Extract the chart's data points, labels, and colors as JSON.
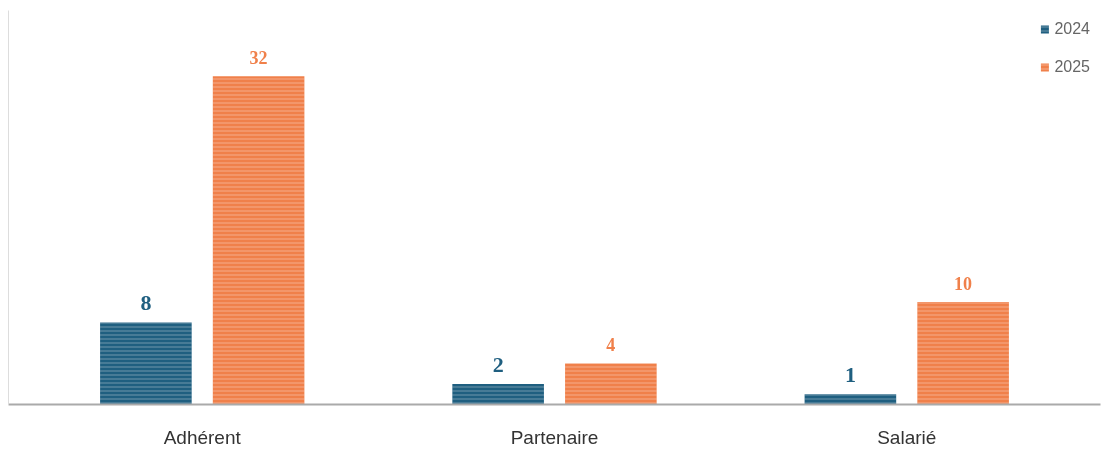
{
  "chart_data": {
    "type": "bar",
    "categories": [
      "Adhérent",
      "Partenaire",
      "Salarié"
    ],
    "series": [
      {
        "name": "2024",
        "color": "#1f5f80",
        "values": [
          8,
          2,
          1
        ]
      },
      {
        "name": "2025",
        "color": "#f0804a",
        "values": [
          32,
          4,
          10
        ]
      }
    ],
    "data_labels": true,
    "legend": "top right",
    "grid": false,
    "tick_labels": "x"
  }
}
